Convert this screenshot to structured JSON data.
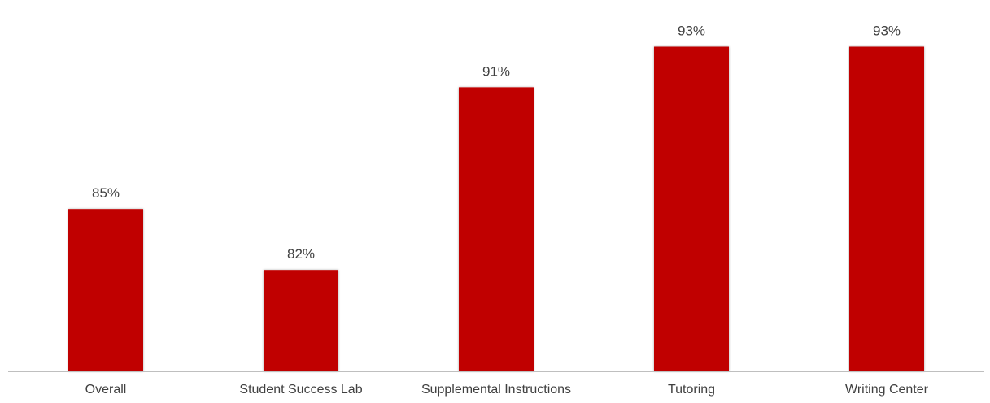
{
  "chart_data": {
    "type": "bar",
    "categories": [
      "Overall",
      "Student Success Lab",
      "Supplemental Instructions",
      "Tutoring",
      "Writing Center"
    ],
    "values": [
      85,
      82,
      91,
      93,
      93
    ],
    "data_labels": [
      "85%",
      "82%",
      "91%",
      "93%",
      "93%"
    ],
    "value_format": "percent",
    "ylim": [
      77,
      93.5
    ],
    "grid": false,
    "legend": "none",
    "bar_color": "#C00000",
    "axis_color": "#BFBFBF",
    "label_color": "#404040"
  }
}
